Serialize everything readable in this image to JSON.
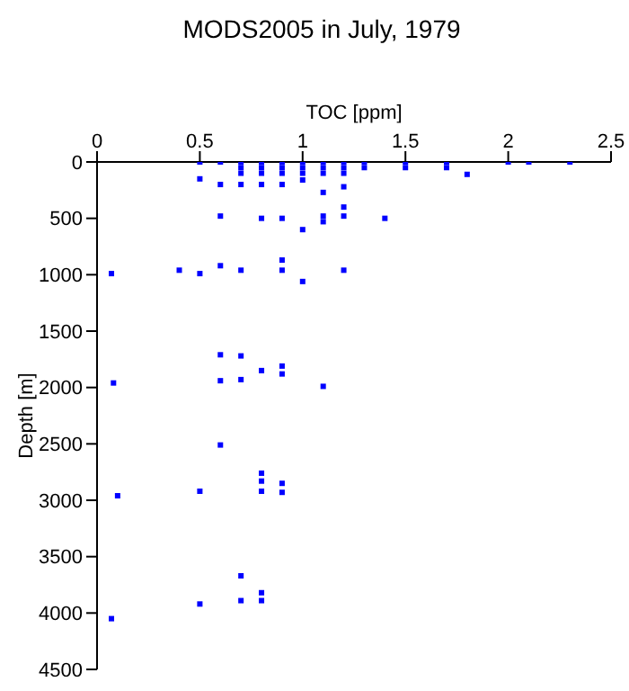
{
  "chart_data": {
    "type": "scatter",
    "title": "MODS2005 in July, 1979",
    "xlabel": "TOC [ppm]",
    "ylabel": "Depth [m]",
    "x": [
      0.5,
      0.5,
      0.6,
      0.6,
      0.6,
      0.6,
      0.7,
      0.7,
      0.7,
      0.7,
      0.7,
      0.8,
      0.8,
      0.8,
      0.8,
      0.8,
      0.9,
      0.9,
      0.9,
      0.9,
      0.9,
      0.9,
      0.9,
      1.0,
      1.0,
      1.0,
      1.0,
      1.0,
      1.0,
      1.1,
      1.1,
      1.1,
      1.1,
      1.1,
      1.1,
      1.2,
      1.2,
      1.2,
      1.2,
      1.2,
      1.2,
      1.2,
      1.3,
      1.3,
      1.4,
      1.5,
      1.5,
      1.7,
      1.7,
      1.8,
      2.0,
      2.1,
      2.3,
      0.07,
      0.4,
      0.5,
      0.6,
      0.6,
      0.6,
      0.7,
      0.7,
      0.8,
      0.9,
      0.9,
      1.1,
      0.08,
      0.1,
      0.5,
      0.8,
      0.8,
      0.8,
      0.9,
      0.9,
      0.7,
      0.7,
      0.8,
      0.8,
      0.5,
      0.07
    ],
    "values": [
      0,
      150,
      0,
      200,
      480,
      920,
      0,
      50,
      100,
      200,
      960,
      0,
      50,
      100,
      200,
      500,
      0,
      50,
      100,
      200,
      500,
      870,
      960,
      0,
      50,
      100,
      160,
      600,
      1060,
      0,
      50,
      100,
      270,
      480,
      530,
      0,
      50,
      100,
      220,
      400,
      480,
      960,
      0,
      50,
      500,
      0,
      50,
      0,
      50,
      110,
      0,
      0,
      0,
      990,
      960,
      990,
      1710,
      1940,
      2510,
      1720,
      1930,
      1850,
      1810,
      1880,
      1990,
      1960,
      2960,
      2920,
      2760,
      2830,
      2920,
      2850,
      2930,
      3670,
      3890,
      3820,
      3890,
      3920,
      4050
    ],
    "color": "#0000ff",
    "marker": "square",
    "xlim": [
      0,
      2.5
    ],
    "xticks": [
      0,
      0.5,
      1,
      1.5,
      2,
      2.5
    ],
    "ylim": [
      4500,
      0
    ],
    "yticks": [
      0,
      500,
      1000,
      1500,
      2000,
      2500,
      3000,
      3500,
      4000,
      4500
    ],
    "grid": false,
    "legend": false
  }
}
